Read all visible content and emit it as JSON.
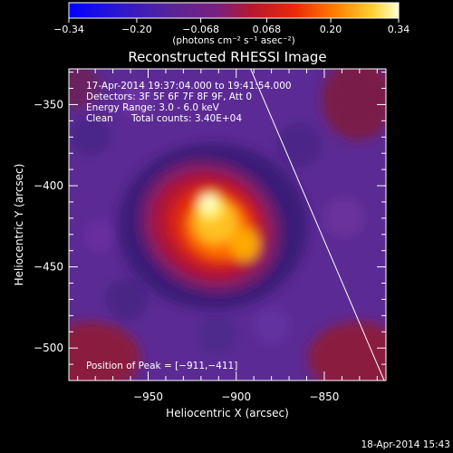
{
  "chart_data": {
    "type": "heatmap",
    "title": "Reconstructed RHESSI Image",
    "xlabel": "Heliocentric X (arcsec)",
    "ylabel": "Heliocentric Y (arcsec)",
    "xlim": [
      -995,
      -815
    ],
    "ylim": [
      -520,
      -328
    ],
    "x_ticks": [
      {
        "value": -950,
        "label": "−950"
      },
      {
        "value": -900,
        "label": "−900"
      },
      {
        "value": -850,
        "label": "−850"
      }
    ],
    "y_ticks": [
      {
        "value": -350,
        "label": "−350"
      },
      {
        "value": -400,
        "label": "−400"
      },
      {
        "value": -450,
        "label": "−450"
      },
      {
        "value": -500,
        "label": "−500"
      }
    ],
    "colorbar": {
      "range": [
        -0.34,
        0.34
      ],
      "ticks": [
        {
          "value": -0.34,
          "label": "−0.34"
        },
        {
          "value": -0.2,
          "label": "−0.20"
        },
        {
          "value": -0.068,
          "label": "−0.068"
        },
        {
          "value": 0.068,
          "label": "0.068"
        },
        {
          "value": 0.2,
          "label": "0.20"
        },
        {
          "value": 0.34,
          "label": "0.34"
        }
      ],
      "unit_label": "(photons cm⁻² s⁻¹ asec⁻²)",
      "colors": [
        "#0000ff",
        "#3b1fb0",
        "#55249a",
        "#7a2080",
        "#c01818",
        "#ff4400",
        "#ff9a00",
        "#ffe030",
        "#ffffd0"
      ]
    },
    "peak": {
      "x": -911,
      "y": -411
    },
    "limb_line": [
      [
        -895,
        -320
      ],
      [
        -816,
        -520
      ]
    ],
    "limb_color": "#ffffff"
  },
  "annotations": {
    "time_range": "17-Apr-2014 19:37:04.000 to 19:41:54.000",
    "detectors": "Detectors: 3F 5F 6F 7F 8F 9F, Att 0",
    "energy": "Energy Range: 3.0 - 6.0 keV",
    "method": "Clean",
    "counts": "Total counts: 3.40E+04",
    "peak_text": "Position of Peak = [−911,−411]"
  },
  "footer": {
    "timestamp": "18-Apr-2014 15:43"
  }
}
